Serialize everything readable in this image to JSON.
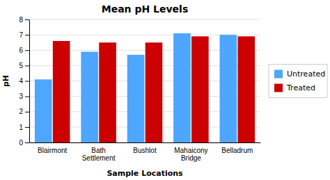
{
  "chart_data": {
    "type": "bar",
    "title": "Mean pH Levels",
    "categories": [
      "Blairmont",
      "Bath\nSettlement",
      "Bushlot",
      "Mahaicony\nBridge",
      "Belladrum"
    ],
    "series": [
      {
        "name": "Untreated",
        "color": "#4da6ff",
        "values": [
          4.1,
          5.9,
          5.7,
          7.1,
          7.0
        ]
      },
      {
        "name": "Treated",
        "color": "#cc0000",
        "values": [
          6.6,
          6.5,
          6.5,
          6.9,
          6.9
        ]
      }
    ],
    "xlabel": "Sample Locations",
    "ylabel": "pH",
    "ylim": [
      0,
      8
    ],
    "yticks": [
      0,
      1,
      2,
      3,
      4,
      5,
      6,
      7,
      8
    ],
    "grid": true,
    "legend": "right"
  }
}
